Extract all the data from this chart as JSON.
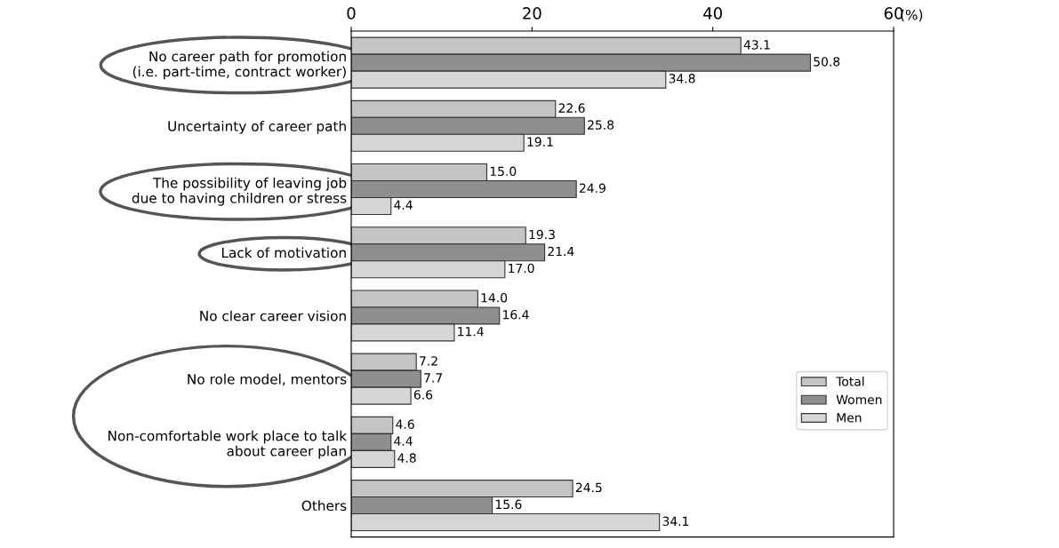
{
  "chart_data": {
    "type": "bar",
    "orientation": "horizontal",
    "xlabel": "(%)",
    "categories": [
      "No career path for promotion\n(i.e. part-time, contract worker)",
      "Uncertainty of career path",
      "The possibility of leaving job\ndue to having children or stress",
      "Lack of motivation",
      "No clear career vision",
      "No role model, mentors",
      "Non-comfortable work place to talk\nabout career plan",
      "Others"
    ],
    "series": [
      {
        "name": "Total",
        "color": "#c4c4c4",
        "values": [
          43.1,
          22.6,
          15.0,
          19.3,
          14.0,
          7.2,
          4.6,
          24.5
        ],
        "value_labels": [
          "43.1",
          "22.6",
          "15.0",
          "19.3",
          "14.0",
          "7.2",
          "4.6",
          "24.5"
        ]
      },
      {
        "name": "Women",
        "color": "#8f8f8f",
        "values": [
          50.8,
          25.8,
          24.9,
          21.4,
          16.4,
          7.7,
          4.4,
          15.6
        ],
        "value_labels": [
          "50.8",
          "25.8",
          "24.9",
          "21.4",
          "16.4",
          "7.7",
          "4.4",
          "15.6"
        ]
      },
      {
        "name": "Men",
        "color": "#d6d6d6",
        "values": [
          34.8,
          19.1,
          4.4,
          17.0,
          11.4,
          6.6,
          4.8,
          34.1
        ],
        "value_labels": [
          "34.8",
          "19.1",
          "4.4",
          "17.0",
          "11.4",
          "6.6",
          "4.8",
          "34.1"
        ]
      }
    ],
    "xlim": [
      0,
      60
    ],
    "xticks": [
      0,
      20,
      40,
      60
    ],
    "grid": false,
    "legend": "bottom right"
  }
}
